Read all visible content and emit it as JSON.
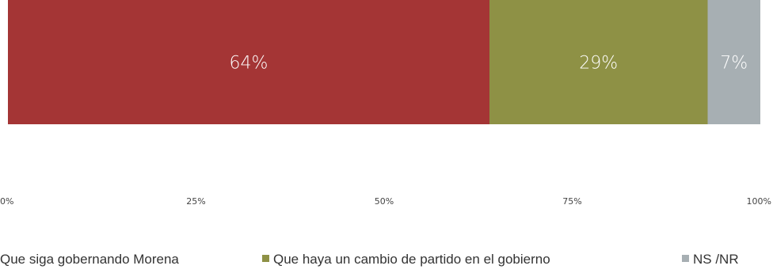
{
  "chart_data": {
    "type": "bar",
    "orientation": "horizontal",
    "stacked": true,
    "categories": [
      ""
    ],
    "series": [
      {
        "name": "Que siga gobernando Morena",
        "values": [
          64
        ],
        "label": "64%",
        "color": "#a43535"
      },
      {
        "name": "Que haya un cambio de partido en el gobierno",
        "values": [
          29
        ],
        "label": "29%",
        "color": "#8e9145"
      },
      {
        "name": "NS /NR",
        "values": [
          7
        ],
        "label": "7%",
        "color": "#a7afb3"
      }
    ],
    "xlim": [
      0,
      100
    ],
    "xticks": [
      0,
      25,
      50,
      75,
      100
    ],
    "xtick_labels": [
      "0%",
      "25%",
      "50%",
      "75%",
      "100%"
    ],
    "title": "",
    "xlabel": "",
    "ylabel": "",
    "grid": false,
    "legend": {
      "position": "bottom",
      "entries": [
        "Que siga gobernando Morena",
        "Que haya un cambio de partido en el gobierno",
        "NS /NR"
      ]
    }
  }
}
